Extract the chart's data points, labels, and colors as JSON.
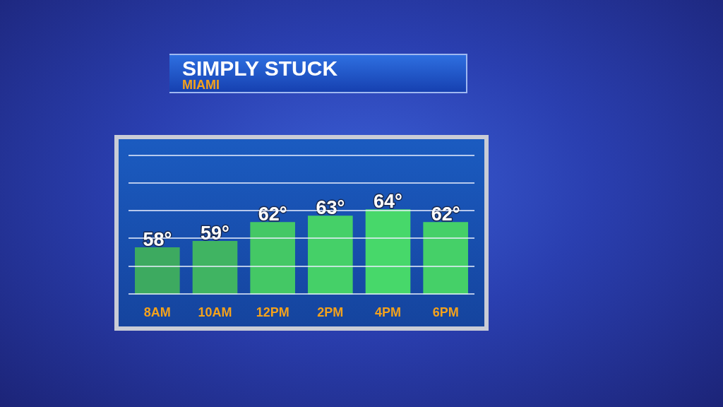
{
  "chart_data": {
    "type": "bar",
    "title": "SIMPLY STUCK",
    "subtitle": "MIAMI",
    "categories": [
      "8AM",
      "10AM",
      "12PM",
      "2PM",
      "4PM",
      "6PM"
    ],
    "values": [
      58,
      59,
      62,
      63,
      64,
      62
    ],
    "value_labels": [
      "58°",
      "59°",
      "62°",
      "63°",
      "64°",
      "62°"
    ],
    "colors": [
      "#3daa60",
      "#40b462",
      "#44c865",
      "#45d068",
      "#47d86a",
      "#45d068"
    ],
    "ylim": [
      50.6,
      72.5
    ],
    "yticks": [
      {
        "value": 50.6,
        "label": null
      },
      {
        "value": 55,
        "label": null
      },
      {
        "value": 59.4,
        "label": null
      },
      {
        "value": 63.8,
        "label": null
      },
      {
        "value": 68.1,
        "label": null
      },
      {
        "value": 72.5,
        "label": null
      }
    ],
    "grid": "y",
    "tick_labels": "x",
    "legend": false
  }
}
